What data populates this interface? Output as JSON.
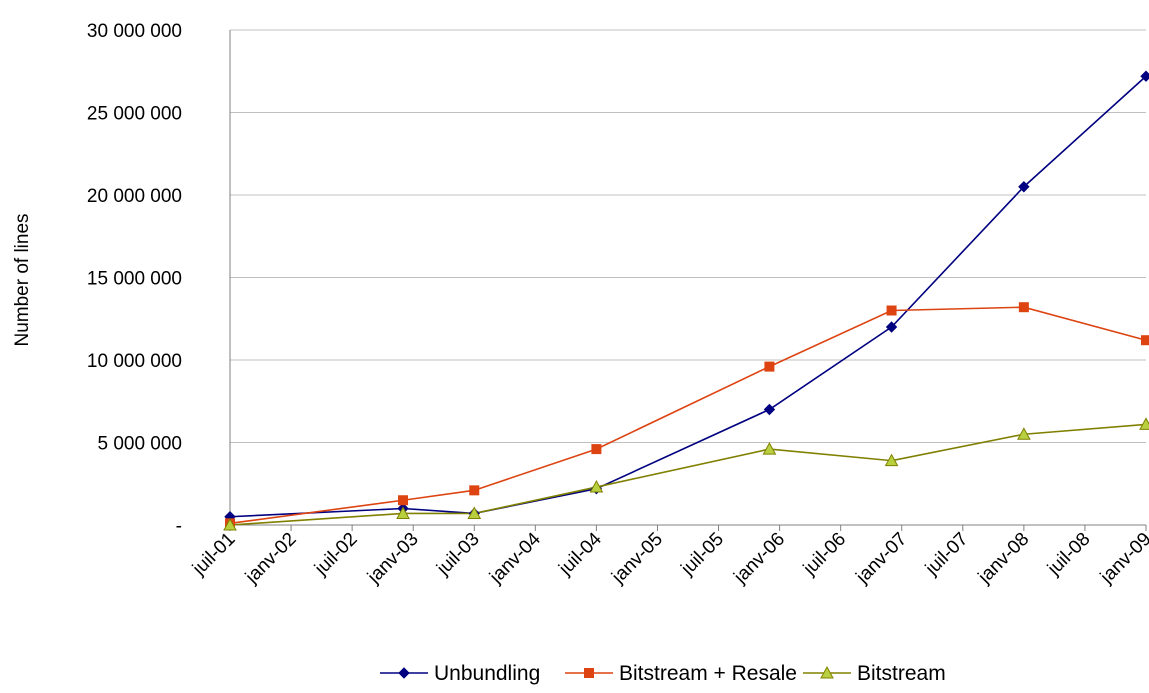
{
  "chart_data": {
    "type": "line",
    "ylabel": "Number of lines",
    "xlabel": "",
    "ylim": [
      0,
      30000000
    ],
    "y_ticks": [
      {
        "value": 0,
        "label": "-"
      },
      {
        "value": 5000000,
        "label": "5 000 000"
      },
      {
        "value": 10000000,
        "label": "10 000 000"
      },
      {
        "value": 15000000,
        "label": "15 000 000"
      },
      {
        "value": 20000000,
        "label": "20 000 000"
      },
      {
        "value": 25000000,
        "label": "25 000 000"
      },
      {
        "value": 30000000,
        "label": "30 000 000"
      }
    ],
    "x_ticks": [
      "juil-01",
      "janv-02",
      "juil-02",
      "janv-03",
      "juil-03",
      "janv-04",
      "juil-04",
      "janv-05",
      "juil-05",
      "janv-06",
      "juil-06",
      "janv-07",
      "juil-07",
      "janv-08",
      "juil-08",
      "janv-09"
    ],
    "x_range": [
      "2001-07",
      "2009-01"
    ],
    "grid": true,
    "legend_position": "bottom",
    "series": [
      {
        "name": "Unbundling",
        "color": "#000080",
        "marker": "diamond",
        "points": [
          {
            "x": "2001-07",
            "y": 500000
          },
          {
            "x": "2002-12",
            "y": 1000000
          },
          {
            "x": "2003-07",
            "y": 700000
          },
          {
            "x": "2004-07",
            "y": 2200000
          },
          {
            "x": "2005-12",
            "y": 7000000
          },
          {
            "x": "2006-12",
            "y": 12000000
          },
          {
            "x": "2008-01",
            "y": 20500000
          },
          {
            "x": "2009-01",
            "y": 27200000
          }
        ]
      },
      {
        "name": "Bitstream + Resale",
        "color": "#dd4411",
        "marker": "square",
        "points": [
          {
            "x": "2001-07",
            "y": 100000
          },
          {
            "x": "2002-12",
            "y": 1500000
          },
          {
            "x": "2003-07",
            "y": 2100000
          },
          {
            "x": "2004-07",
            "y": 4600000
          },
          {
            "x": "2005-12",
            "y": 9600000
          },
          {
            "x": "2006-12",
            "y": 13000000
          },
          {
            "x": "2008-01",
            "y": 13200000
          },
          {
            "x": "2009-01",
            "y": 11200000
          }
        ]
      },
      {
        "name": "Bitstream",
        "color": "#808000",
        "marker_fill": "#b8d040",
        "marker": "triangle",
        "points": [
          {
            "x": "2001-07",
            "y": 0
          },
          {
            "x": "2002-12",
            "y": 700000
          },
          {
            "x": "2003-07",
            "y": 700000
          },
          {
            "x": "2004-07",
            "y": 2300000
          },
          {
            "x": "2005-12",
            "y": 4600000
          },
          {
            "x": "2006-12",
            "y": 3900000
          },
          {
            "x": "2008-01",
            "y": 5500000
          },
          {
            "x": "2009-01",
            "y": 6100000
          }
        ]
      }
    ]
  }
}
